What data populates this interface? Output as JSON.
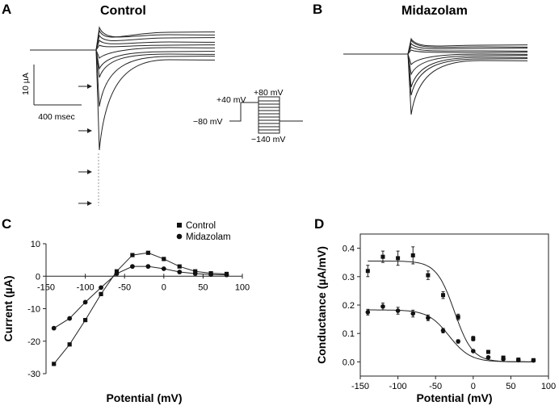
{
  "panels": {
    "A": {
      "letter": "A",
      "title": "Control"
    },
    "B": {
      "letter": "B",
      "title": "Midazolam"
    },
    "C": {
      "letter": "C"
    },
    "D": {
      "letter": "D"
    }
  },
  "scale_bar": {
    "current": "10 µA",
    "time": "400 msec"
  },
  "protocol": {
    "hold": "−80 mV",
    "prepulse": "+40 mV",
    "top": "+80 mV",
    "bottom": "−140 mV"
  },
  "chart_data": [
    {
      "panel": "C",
      "type": "line",
      "xlabel": "Potential (mV)",
      "ylabel": "Current (µA)",
      "xlim": [
        -150,
        100
      ],
      "ylim": [
        -30,
        10
      ],
      "xticks": [
        -150,
        -100,
        -50,
        0,
        50,
        100
      ],
      "yticks": [
        -30,
        -20,
        -10,
        0,
        10
      ],
      "x": [
        -140,
        -120,
        -100,
        -80,
        -60,
        -40,
        -20,
        0,
        20,
        40,
        60,
        80
      ],
      "legend_position": "top-right",
      "series": [
        {
          "name": "Control",
          "marker": "square",
          "values": [
            -27,
            -21,
            -13.5,
            -5.5,
            1.5,
            6.5,
            7.2,
            5.3,
            3,
            1.5,
            0.9,
            0.7
          ]
        },
        {
          "name": "Midazolam",
          "marker": "circle",
          "values": [
            -16,
            -13,
            -8,
            -3.5,
            0.8,
            3,
            3,
            2.3,
            1.3,
            0.8,
            0.5,
            0.4
          ]
        }
      ]
    },
    {
      "panel": "D",
      "type": "scatter",
      "xlabel": "Potential (mV)",
      "ylabel": "Conductance (µA/mV)",
      "xlim": [
        -150,
        100
      ],
      "ylim": [
        -0.05,
        0.45
      ],
      "xticks": [
        -150,
        -100,
        -50,
        0,
        50,
        100
      ],
      "yticks": [
        0.0,
        0.1,
        0.2,
        0.3,
        0.4
      ],
      "x": [
        -140,
        -120,
        -100,
        -80,
        -60,
        -40,
        -20,
        0,
        20,
        40,
        60,
        80
      ],
      "series": [
        {
          "name": "Control",
          "marker": "square",
          "values": [
            0.32,
            0.37,
            0.365,
            0.375,
            0.305,
            0.235,
            0.158,
            0.082,
            0.035,
            0.015,
            0.008,
            0.006
          ],
          "errors": [
            0.02,
            0.02,
            0.025,
            0.03,
            0.015,
            0.012,
            0.01,
            0.008,
            0.005,
            0.004,
            0.003,
            0.003
          ],
          "fit": {
            "top": 0.355,
            "v_half": -25,
            "slope": 12
          }
        },
        {
          "name": "Midazolam",
          "marker": "circle",
          "values": [
            0.175,
            0.195,
            0.18,
            0.17,
            0.155,
            0.11,
            0.072,
            0.038,
            0.016,
            0.01,
            0.006,
            0.005
          ],
          "errors": [
            0.01,
            0.012,
            0.012,
            0.012,
            0.01,
            0.008,
            0.006,
            0.004,
            0.003,
            0.003,
            0.002,
            0.002
          ],
          "fit": {
            "top": 0.183,
            "v_half": -32,
            "slope": 14
          }
        }
      ]
    }
  ]
}
